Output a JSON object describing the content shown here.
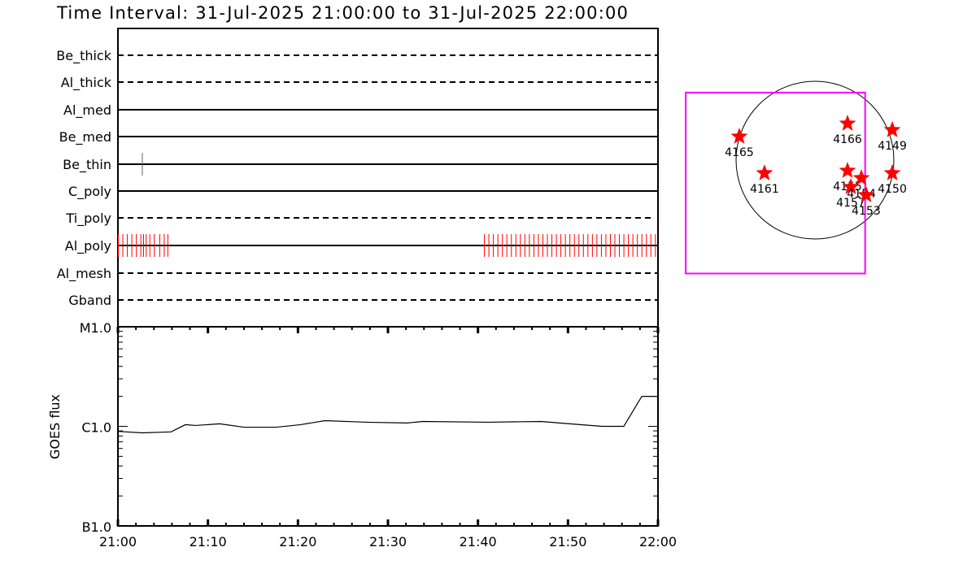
{
  "chart_data": [
    {
      "type": "timeline",
      "title": "Time Interval: 31-Jul-2025 21:00:00 to 31-Jul-2025 22:00:00",
      "xlim": [
        "21:00:00",
        "22:00:00"
      ],
      "rows": [
        {
          "name": "Be_thick",
          "style": "dashed",
          "exposures": []
        },
        {
          "name": "Al_thick",
          "style": "dashed",
          "exposures": []
        },
        {
          "name": "Al_med",
          "style": "solid",
          "exposures": []
        },
        {
          "name": "Be_med",
          "style": "solid",
          "exposures": []
        },
        {
          "name": "Be_thin",
          "style": "solid",
          "exposures": [
            "21:02:40"
          ],
          "exposure_color": "#666666"
        },
        {
          "name": "C_poly",
          "style": "solid",
          "exposures": []
        },
        {
          "name": "Ti_poly",
          "style": "dashed",
          "exposures": []
        },
        {
          "name": "Al_poly",
          "style": "solid",
          "exposure_color": "#ff0000",
          "exposures": [
            "21:00:00",
            "21:00:30",
            "21:01:00",
            "21:01:30",
            "21:02:00",
            "21:02:30",
            "21:02:48",
            "21:03:06",
            "21:03:30",
            "21:04:00",
            "21:04:36",
            "21:05:06",
            "21:05:30",
            "21:40:40",
            "21:41:10",
            "21:41:40",
            "21:42:10",
            "21:42:40",
            "21:43:10",
            "21:43:40",
            "21:44:10",
            "21:44:40",
            "21:45:10",
            "21:45:40",
            "21:46:10",
            "21:46:40",
            "21:47:10",
            "21:47:40",
            "21:48:10",
            "21:48:40",
            "21:49:10",
            "21:49:40",
            "21:50:10",
            "21:50:40",
            "21:51:10",
            "21:51:40",
            "21:52:10",
            "21:52:40",
            "21:53:10",
            "21:53:40",
            "21:54:10",
            "21:54:40",
            "21:55:10",
            "21:55:40",
            "21:56:10",
            "21:56:40",
            "21:57:10",
            "21:57:40",
            "21:58:10",
            "21:58:40",
            "21:59:10",
            "21:59:40"
          ]
        },
        {
          "name": "Al_mesh",
          "style": "dashed",
          "exposures": []
        },
        {
          "name": "Gband",
          "style": "dashed",
          "exposures": []
        }
      ]
    },
    {
      "type": "line",
      "ylabel": "GOES flux",
      "yscale": "log",
      "y_unit_note": "values in units of C1.0",
      "ylim": [
        0.1,
        10
      ],
      "ytick_labels": [
        "B1.0",
        "C1.0",
        "M1.0"
      ],
      "xtick_labels": [
        "21:00",
        "21:10",
        "21:20",
        "21:30",
        "21:40",
        "21:50",
        "22:00"
      ],
      "x": [
        "21:00:00",
        "21:02:42",
        "21:05:54",
        "21:07:30",
        "21:08:36",
        "21:11:18",
        "21:14:00",
        "21:17:36",
        "21:20:18",
        "21:23:00",
        "21:27:36",
        "21:32:06",
        "21:33:54",
        "21:41:06",
        "21:47:00",
        "21:50:12",
        "21:53:48",
        "21:56:12",
        "21:58:12",
        "22:00:00"
      ],
      "y": [
        0.89,
        0.86,
        0.88,
        1.04,
        1.02,
        1.06,
        0.98,
        0.98,
        1.04,
        1.14,
        1.1,
        1.08,
        1.12,
        1.1,
        1.12,
        1.06,
        1.0,
        1.0,
        2.0,
        2.0
      ]
    },
    {
      "type": "scatter",
      "solar_radius_arcsec": 950,
      "fov_box": {
        "center": [
          -476,
          -276
        ],
        "size": [
          2160,
          2180
        ],
        "color": "#ff00ff"
      },
      "marker_color": "#ff0000",
      "points": [
        {
          "label": "4165",
          "x": -911,
          "y": 284
        },
        {
          "label": "4166",
          "x": 392,
          "y": 441
        },
        {
          "label": "4149",
          "x": 931,
          "y": 363
        },
        {
          "label": "4161",
          "x": -608,
          "y": -157
        },
        {
          "label": "4155",
          "x": 392,
          "y": -127
        },
        {
          "label": "4157",
          "x": 431,
          "y": -323
        },
        {
          "label": "4154",
          "x": 559,
          "y": -216
        },
        {
          "label": "4153",
          "x": 617,
          "y": -421
        },
        {
          "label": "4150",
          "x": 931,
          "y": -157
        }
      ]
    }
  ]
}
